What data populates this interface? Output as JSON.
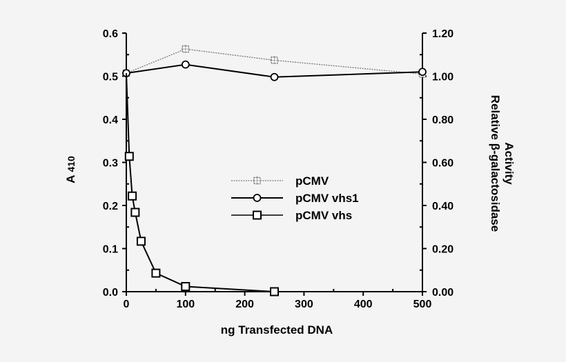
{
  "chart_data": {
    "type": "line",
    "title": "",
    "xlabel": "ng Transfected DNA",
    "ylabel": "A 410",
    "ylabel_main": "A",
    "ylabel_sub": "410",
    "y2label_line1": "Relative β-galactosidase",
    "y2label_line2": "Activity",
    "xlim": [
      0,
      500
    ],
    "ylim": [
      0,
      0.6
    ],
    "y2lim": [
      0,
      1.2
    ],
    "grid": false,
    "legend_position": "center",
    "x_ticks": [
      "0",
      "100",
      "200",
      "300",
      "400",
      "500"
    ],
    "y_ticks": [
      "0.0",
      "0.1",
      "0.2",
      "0.3",
      "0.4",
      "0.5",
      "0.6"
    ],
    "y2_ticks": [
      "0.00",
      "0.20",
      "0.40",
      "0.60",
      "0.80",
      "1.00",
      "1.20"
    ],
    "series": [
      {
        "name": "pCMV",
        "marker": "star",
        "line": "dotted-gray",
        "x": [
          0,
          100,
          250,
          500
        ],
        "values": [
          0.507,
          0.563,
          0.537,
          0.505
        ]
      },
      {
        "name": "pCMV vhs1",
        "marker": "circle",
        "line": "solid",
        "x": [
          0,
          100,
          250,
          500
        ],
        "values": [
          0.507,
          0.527,
          0.498,
          0.51
        ]
      },
      {
        "name": "pCMV vhs",
        "marker": "square",
        "line": "solid",
        "x": [
          0,
          5,
          10,
          15,
          25,
          50,
          100,
          250,
          500
        ],
        "values": [
          0.507,
          0.314,
          0.222,
          0.184,
          0.117,
          0.043,
          0.012,
          0.0,
          0.0
        ]
      }
    ]
  },
  "legend": {
    "items": [
      {
        "label": "pCMV"
      },
      {
        "label": "pCMV vhs1"
      },
      {
        "label": "pCMV vhs"
      }
    ]
  }
}
